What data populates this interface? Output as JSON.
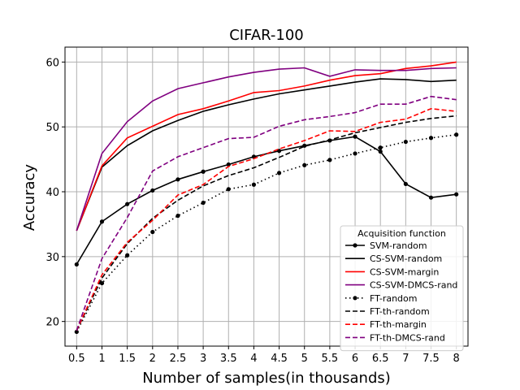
{
  "chart_data": {
    "type": "line",
    "title": "CIFAR-100",
    "xlabel": "Number of samples(in thousands)",
    "ylabel": "Accuracy",
    "x": [
      0.5,
      1,
      1.5,
      2,
      2.5,
      3,
      3.5,
      4,
      4.5,
      5,
      5.5,
      6,
      6.5,
      7,
      7.5,
      8
    ],
    "xtick_labels": [
      "0.5",
      "1",
      "1.5",
      "2",
      "2.5",
      "3",
      "3.5",
      "4",
      "4.5",
      "5",
      "5.5",
      "6",
      "6.5",
      "7",
      "7.5",
      "8"
    ],
    "xlim": [
      0.27,
      8.23
    ],
    "ylim": [
      16.2,
      62.3
    ],
    "yticks": [
      20,
      30,
      40,
      50,
      60
    ],
    "ytick_labels": [
      "20",
      "30",
      "40",
      "50",
      "60"
    ],
    "grid": true,
    "legend": {
      "title": "Acquisition function",
      "position": "lower-right"
    },
    "series": [
      {
        "name": "SVM-random",
        "color": "#000000",
        "style": "solid",
        "marker": "dot",
        "values": [
          28.8,
          35.4,
          38.1,
          40.2,
          41.9,
          43.1,
          44.2,
          45.4,
          46.3,
          47.1,
          47.9,
          48.5,
          46.2,
          41.2,
          39.1,
          39.6
        ]
      },
      {
        "name": "CS-SVM-random",
        "color": "#000000",
        "style": "solid",
        "marker": "none",
        "values": [
          34.0,
          43.8,
          47.1,
          49.4,
          51.0,
          52.4,
          53.4,
          54.3,
          55.1,
          55.7,
          56.3,
          56.9,
          57.4,
          57.3,
          57.0,
          57.2
        ]
      },
      {
        "name": "CS-SVM-margin",
        "color": "#ff0000",
        "style": "solid",
        "marker": "none",
        "values": [
          34.0,
          44.0,
          48.3,
          50.1,
          51.9,
          52.8,
          54.0,
          55.3,
          55.6,
          56.3,
          57.2,
          57.9,
          58.2,
          59.0,
          59.4,
          60.0
        ]
      },
      {
        "name": "CS-SVM-DMCS-rand",
        "color": "#800080",
        "style": "solid",
        "marker": "none",
        "values": [
          34.0,
          45.9,
          50.8,
          54.0,
          55.9,
          56.8,
          57.7,
          58.4,
          58.9,
          59.1,
          57.8,
          58.8,
          58.7,
          58.7,
          59.0,
          59.1
        ]
      },
      {
        "name": "FT-random",
        "color": "#000000",
        "style": "dotted",
        "marker": "dot",
        "values": [
          18.4,
          25.9,
          30.2,
          33.8,
          36.3,
          38.3,
          40.4,
          41.1,
          42.9,
          44.1,
          44.9,
          45.9,
          46.8,
          47.7,
          48.3,
          48.8
        ]
      },
      {
        "name": "FT-th-random",
        "color": "#000000",
        "style": "dashed",
        "marker": "none",
        "values": [
          18.6,
          26.7,
          32.0,
          35.9,
          38.7,
          40.9,
          42.5,
          43.7,
          45.3,
          47.0,
          48.0,
          49.1,
          49.9,
          50.7,
          51.3,
          51.7
        ]
      },
      {
        "name": "FT-th-margin",
        "color": "#ff0000",
        "style": "dashed",
        "marker": "none",
        "values": [
          18.6,
          27.2,
          32.2,
          35.6,
          39.5,
          41.1,
          43.9,
          45.1,
          46.6,
          47.9,
          49.4,
          49.3,
          50.7,
          51.2,
          52.8,
          52.4
        ]
      },
      {
        "name": "FT-th-DMCS-rand",
        "color": "#800080",
        "style": "dashed",
        "marker": "none",
        "values": [
          18.6,
          29.7,
          36.0,
          43.2,
          45.4,
          46.8,
          48.2,
          48.4,
          50.1,
          51.1,
          51.6,
          52.2,
          53.5,
          53.5,
          54.7,
          54.2
        ]
      }
    ]
  }
}
